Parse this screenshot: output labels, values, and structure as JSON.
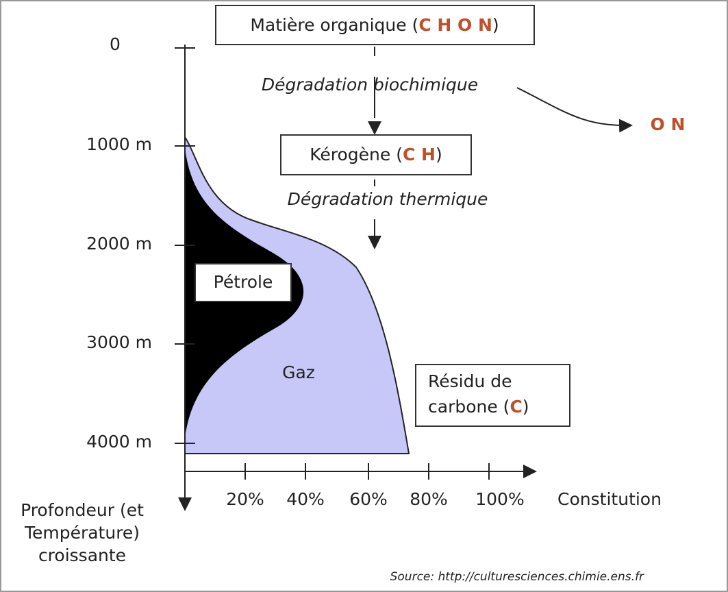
{
  "boxes": {
    "organic": [
      "Matière organique (",
      "C H O N",
      ")"
    ],
    "kerogen": [
      "Kérogène (",
      "C H",
      ")"
    ],
    "residue": {
      "line1": "Résidu de",
      "line2": [
        "carbone (",
        "C",
        ")"
      ]
    }
  },
  "processes": [
    "Dégradation biochimique",
    "Dégradation thermique"
  ],
  "released": "O N",
  "regions": {
    "oil": "Pétrole",
    "gas": "Gaz"
  },
  "y_axis": {
    "label": [
      "Profondeur (et",
      "Température)",
      "croissante"
    ],
    "ticks": [
      "0",
      "1000 m",
      "2000 m",
      "3000 m",
      "4000 m"
    ]
  },
  "x_axis": {
    "label": "Constitution",
    "ticks": [
      "20%",
      "40%",
      "60%",
      "80%",
      "100%"
    ]
  },
  "source": "Source: http://culturesciences.chimie.ens.fr"
}
